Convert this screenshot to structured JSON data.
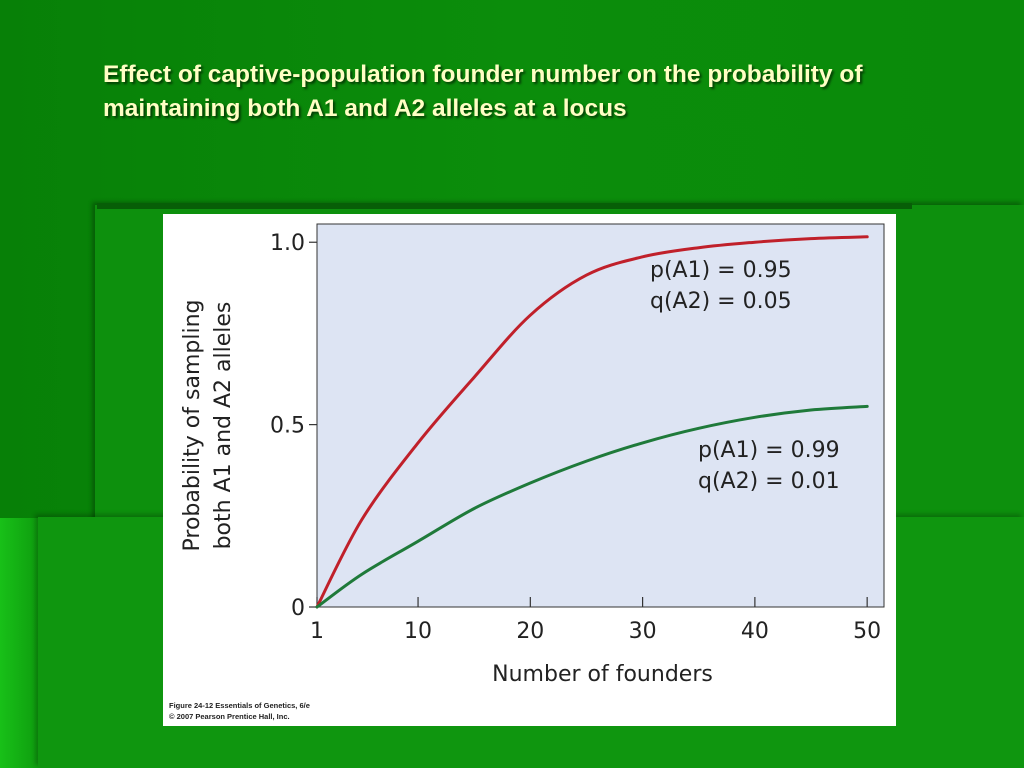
{
  "slide": {
    "title": "Effect of captive-population founder number on the probability of maintaining both A1 and A2 alleles at a locus"
  },
  "figure": {
    "credit_line1": "Figure 24-12 Essentials of Genetics, 6/e",
    "credit_line2": "© 2007 Pearson Prentice Hall, Inc."
  },
  "chart_data": {
    "type": "line",
    "title": "",
    "xlabel": "Number of founders",
    "ylabel_line1": "Probability of sampling",
    "ylabel_line2": "both A1 and A2 alleles",
    "xlim": [
      1,
      51.5
    ],
    "ylim": [
      0,
      1.05
    ],
    "x_ticks": [
      1,
      10,
      20,
      30,
      40,
      50
    ],
    "x_tick_labels": [
      "1",
      "10",
      "20",
      "30",
      "40",
      "50"
    ],
    "y_ticks": [
      0,
      0.5,
      1.0
    ],
    "y_tick_labels": [
      "0",
      "0.5",
      "1.0"
    ],
    "grid": false,
    "plot_background": "#dde4f3",
    "series": [
      {
        "annotation_line1": "p(A1) = 0.95",
        "annotation_line2": "q(A2) = 0.05",
        "color": "#c0202a",
        "points": [
          [
            1,
            0
          ],
          [
            5,
            0.24
          ],
          [
            10,
            0.45
          ],
          [
            15,
            0.63
          ],
          [
            20,
            0.8
          ],
          [
            25,
            0.91
          ],
          [
            30,
            0.96
          ],
          [
            35,
            0.985
          ],
          [
            40,
            1.0
          ],
          [
            45,
            1.01
          ],
          [
            50,
            1.015
          ]
        ]
      },
      {
        "annotation_line1": "p(A1) = 0.99",
        "annotation_line2": "q(A2) = 0.01",
        "color": "#1f7a3a",
        "points": [
          [
            1,
            0
          ],
          [
            5,
            0.09
          ],
          [
            10,
            0.18
          ],
          [
            15,
            0.27
          ],
          [
            20,
            0.34
          ],
          [
            25,
            0.4
          ],
          [
            30,
            0.45
          ],
          [
            35,
            0.49
          ],
          [
            40,
            0.52
          ],
          [
            45,
            0.54
          ],
          [
            50,
            0.55
          ]
        ]
      }
    ]
  }
}
